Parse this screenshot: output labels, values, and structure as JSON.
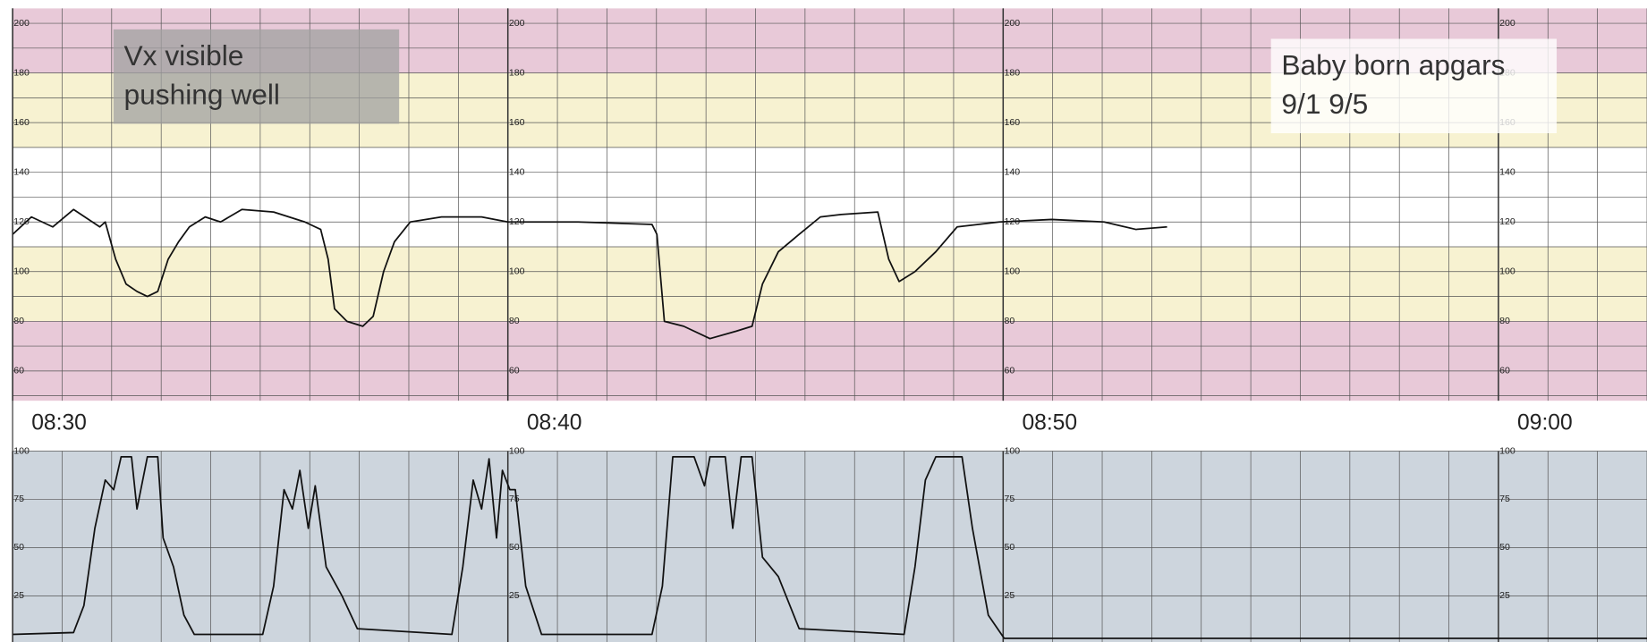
{
  "chart_data": [
    {
      "type": "line",
      "xlim": [
        0,
        33
      ],
      "ylim": [
        48,
        206
      ],
      "xticks": [
        {
          "value": 0,
          "label": "08:30"
        },
        {
          "value": 10,
          "label": "08:40"
        },
        {
          "value": 20,
          "label": "08:50"
        },
        {
          "value": 30,
          "label": "09:00"
        }
      ],
      "yticks": [
        60,
        80,
        100,
        120,
        140,
        160,
        180,
        200
      ],
      "grid": true,
      "bands": [
        {
          "from": 180,
          "to": 206,
          "color": "#e8c9d8"
        },
        {
          "from": 150,
          "to": 180,
          "color": "#f7f2d1"
        },
        {
          "from": 110,
          "to": 150,
          "color": "#ffffff"
        },
        {
          "from": 80,
          "to": 110,
          "color": "#f7f2d1"
        },
        {
          "from": 48,
          "to": 80,
          "color": "#e8c9d8"
        }
      ],
      "annotations": [
        [
          "Vx visible",
          "pushing well"
        ],
        [
          "Baby born apgars",
          "9/1 9/5"
        ]
      ],
      "series": [
        {
          "color": "#111111",
          "x": [
            0,
            0.38,
            0.81,
            1.23,
            1.76,
            1.87,
            2.08,
            2.29,
            2.51,
            2.72,
            2.93,
            3.14,
            3.35,
            3.57,
            3.89,
            4.2,
            4.63,
            5.27,
            5.9,
            6.22,
            6.37,
            6.5,
            6.75,
            7.07,
            7.28,
            7.49,
            7.71,
            8.03,
            8.66,
            9.47,
            10.0,
            11.42,
            12.91,
            13.01,
            13.16,
            13.55,
            14.08,
            14.61,
            14.93,
            15.14,
            15.46,
            15.88,
            16.31,
            16.73,
            17.47,
            17.69,
            17.9,
            18.22,
            18.64,
            19.07,
            19.92,
            20.98,
            22.04,
            22.68,
            23.31
          ],
          "values": [
            115,
            122,
            118,
            125,
            118,
            120,
            105,
            95,
            92,
            90,
            92,
            105,
            112,
            118,
            122,
            120,
            125,
            124,
            120,
            117,
            105,
            85,
            80,
            78,
            82,
            100,
            112,
            120,
            122,
            122,
            120,
            120,
            119,
            115,
            80,
            78,
            73,
            76,
            78,
            95,
            108,
            115,
            122,
            123,
            124,
            105,
            96,
            100,
            108,
            118,
            120,
            121,
            120,
            117,
            118
          ]
        }
      ]
    },
    {
      "type": "line",
      "xlim": [
        0,
        33
      ],
      "ylim": [
        0,
        100
      ],
      "yticks": [
        25,
        50,
        75,
        100
      ],
      "grid": true,
      "background": "#cdd5dd",
      "series": [
        {
          "color": "#111111",
          "x": [
            0,
            1.23,
            1.44,
            1.66,
            1.87,
            2.04,
            2.19,
            2.4,
            2.51,
            2.72,
            2.93,
            3.04,
            3.25,
            3.46,
            3.67,
            5.05,
            5.27,
            5.48,
            5.65,
            5.8,
            5.97,
            6.11,
            6.33,
            6.65,
            6.96,
            8.87,
            9.09,
            9.3,
            9.47,
            9.62,
            9.77,
            9.89,
            10.04,
            10.15,
            10.36,
            10.68,
            12.91,
            13.12,
            13.33,
            13.76,
            13.97,
            14.08,
            14.39,
            14.54,
            14.71,
            14.93,
            15.14,
            15.46,
            15.88,
            18.0,
            18.22,
            18.43,
            18.64,
            19.17,
            19.38,
            19.7,
            20.02,
            33
          ],
          "values": [
            5,
            6,
            20,
            60,
            85,
            80,
            97,
            97,
            70,
            97,
            97,
            55,
            40,
            15,
            5,
            5,
            30,
            80,
            70,
            90,
            60,
            82,
            40,
            25,
            8,
            5,
            40,
            85,
            70,
            96,
            55,
            90,
            80,
            80,
            30,
            5,
            5,
            30,
            97,
            97,
            82,
            97,
            97,
            60,
            97,
            97,
            45,
            35,
            8,
            5,
            40,
            85,
            97,
            97,
            60,
            15,
            3,
            3
          ]
        }
      ]
    }
  ]
}
